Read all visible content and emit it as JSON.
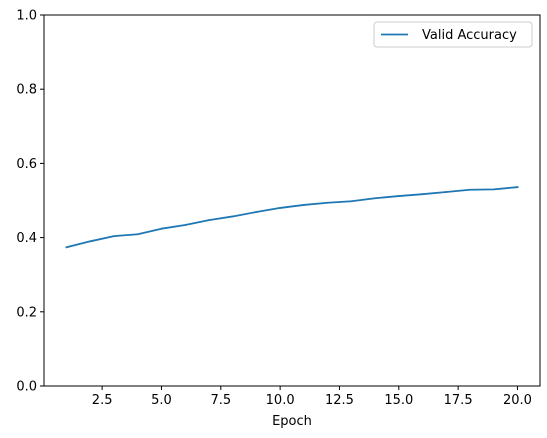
{
  "chart_data": {
    "type": "line",
    "title": "",
    "xlabel": "Epoch",
    "ylabel": "",
    "xlim": [
      0.05,
      20.95
    ],
    "ylim": [
      0.0,
      1.0
    ],
    "xticks": [
      2.5,
      5.0,
      7.5,
      10.0,
      12.5,
      15.0,
      17.5,
      20.0
    ],
    "xtick_labels": [
      "2.5",
      "5.0",
      "7.5",
      "10.0",
      "12.5",
      "15.0",
      "17.5",
      "20.0"
    ],
    "yticks": [
      0.0,
      0.2,
      0.4,
      0.6,
      0.8,
      1.0
    ],
    "ytick_labels": [
      "0.0",
      "0.2",
      "0.4",
      "0.6",
      "0.8",
      "1.0"
    ],
    "grid": false,
    "legend_position": "top-right",
    "series": [
      {
        "name": "Valid Accuracy",
        "color": "#1f77b4",
        "x": [
          1,
          2,
          3,
          4,
          5,
          6,
          7,
          8,
          9,
          10,
          11,
          12,
          13,
          14,
          15,
          16,
          17,
          18,
          19,
          20
        ],
        "y": [
          0.374,
          0.39,
          0.404,
          0.409,
          0.424,
          0.434,
          0.447,
          0.457,
          0.469,
          0.48,
          0.488,
          0.494,
          0.498,
          0.506,
          0.512,
          0.517,
          0.523,
          0.529,
          0.53,
          0.536
        ]
      }
    ]
  }
}
